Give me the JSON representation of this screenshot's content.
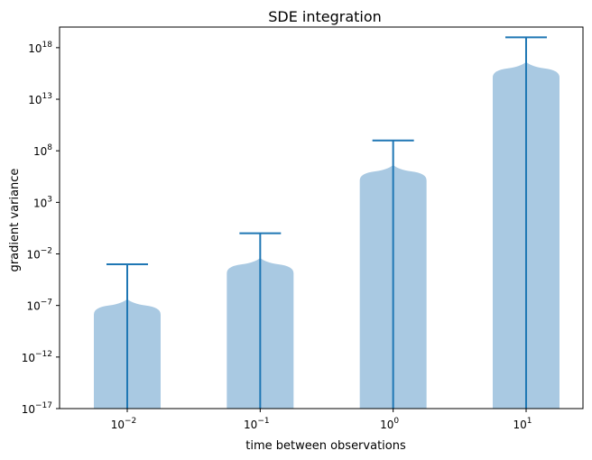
{
  "chart_data": {
    "type": "violin",
    "title": "SDE integration",
    "xlabel": "time between observations",
    "ylabel": "gradient variance",
    "yscale": "log",
    "ylim": [
      1e-17,
      1e+20
    ],
    "ytick_exponents": [
      -17,
      -12,
      -7,
      -2,
      3,
      8,
      13,
      18
    ],
    "categories": [
      {
        "base": "10",
        "exp": "−2"
      },
      {
        "base": "10",
        "exp": "−1"
      },
      {
        "base": "10",
        "exp": "0"
      },
      {
        "base": "10",
        "exp": "1"
      }
    ],
    "violins": [
      {
        "x": "1e-2",
        "max": 0.001,
        "top": 1e-07
      },
      {
        "x": "1e-1",
        "max": 1.0,
        "top": 0.001
      },
      {
        "x": "1e0",
        "max": 1000000000.0,
        "top": 1000000.0
      },
      {
        "x": "1e1",
        "max": 1e+19,
        "top": 1e+16
      }
    ],
    "colors": {
      "body": "#a9c9e2",
      "line": "#1f77b4"
    }
  }
}
